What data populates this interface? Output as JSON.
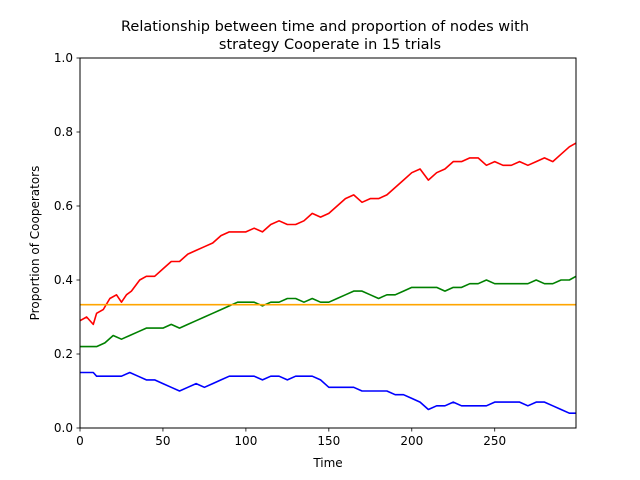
{
  "chart_data": {
    "type": "line",
    "title_lines": [
      "Relationship between time and proportion of nodes with",
      "strategy Cooperate in 15 trials"
    ],
    "xlabel": "Time",
    "ylabel": "Proportion of Cooperators",
    "xlim": [
      0,
      299
    ],
    "ylim": [
      0.0,
      1.0
    ],
    "xticks": [
      0,
      50,
      100,
      150,
      200,
      250
    ],
    "yticks": [
      0.0,
      0.2,
      0.4,
      0.6,
      0.8,
      1.0
    ],
    "ytick_labels": [
      "0.0",
      "0.2",
      "0.4",
      "0.6",
      "0.8",
      "1.0"
    ],
    "grid": false,
    "series": [
      {
        "color": "#ff0000",
        "x": [
          0,
          4,
          8,
          10,
          14,
          18,
          22,
          25,
          28,
          31,
          36,
          40,
          45,
          50,
          55,
          60,
          65,
          70,
          75,
          80,
          85,
          90,
          95,
          100,
          105,
          110,
          115,
          120,
          125,
          130,
          135,
          140,
          145,
          150,
          155,
          160,
          165,
          170,
          175,
          180,
          185,
          190,
          195,
          200,
          205,
          210,
          215,
          220,
          225,
          230,
          235,
          240,
          245,
          250,
          255,
          260,
          265,
          270,
          275,
          280,
          285,
          290,
          295,
          299
        ],
        "values": [
          0.29,
          0.3,
          0.28,
          0.31,
          0.32,
          0.35,
          0.36,
          0.34,
          0.36,
          0.37,
          0.4,
          0.41,
          0.41,
          0.43,
          0.45,
          0.45,
          0.47,
          0.48,
          0.49,
          0.5,
          0.52,
          0.53,
          0.53,
          0.53,
          0.54,
          0.53,
          0.55,
          0.56,
          0.55,
          0.55,
          0.56,
          0.58,
          0.57,
          0.58,
          0.6,
          0.62,
          0.63,
          0.61,
          0.62,
          0.62,
          0.63,
          0.65,
          0.67,
          0.69,
          0.7,
          0.67,
          0.69,
          0.7,
          0.72,
          0.72,
          0.73,
          0.73,
          0.71,
          0.72,
          0.71,
          0.71,
          0.72,
          0.71,
          0.72,
          0.73,
          0.72,
          0.74,
          0.76,
          0.77
        ]
      },
      {
        "color": "#008000",
        "x": [
          0,
          5,
          10,
          15,
          20,
          25,
          30,
          35,
          40,
          45,
          50,
          55,
          60,
          65,
          70,
          75,
          80,
          85,
          90,
          95,
          100,
          105,
          110,
          115,
          120,
          125,
          130,
          135,
          140,
          145,
          150,
          155,
          160,
          165,
          170,
          175,
          180,
          185,
          190,
          195,
          200,
          205,
          210,
          215,
          220,
          225,
          230,
          235,
          240,
          245,
          250,
          255,
          260,
          265,
          270,
          275,
          280,
          285,
          290,
          295,
          299
        ],
        "values": [
          0.22,
          0.22,
          0.22,
          0.23,
          0.25,
          0.24,
          0.25,
          0.26,
          0.27,
          0.27,
          0.27,
          0.28,
          0.27,
          0.28,
          0.29,
          0.3,
          0.31,
          0.32,
          0.33,
          0.34,
          0.34,
          0.34,
          0.33,
          0.34,
          0.34,
          0.35,
          0.35,
          0.34,
          0.35,
          0.34,
          0.34,
          0.35,
          0.36,
          0.37,
          0.37,
          0.36,
          0.35,
          0.36,
          0.36,
          0.37,
          0.38,
          0.38,
          0.38,
          0.38,
          0.37,
          0.38,
          0.38,
          0.39,
          0.39,
          0.4,
          0.39,
          0.39,
          0.39,
          0.39,
          0.39,
          0.4,
          0.39,
          0.39,
          0.4,
          0.4,
          0.41
        ]
      },
      {
        "color": "#0000ff",
        "x": [
          0,
          5,
          8,
          10,
          15,
          20,
          25,
          30,
          35,
          40,
          45,
          50,
          55,
          60,
          65,
          70,
          75,
          80,
          85,
          90,
          95,
          100,
          105,
          110,
          115,
          120,
          125,
          130,
          135,
          140,
          145,
          150,
          155,
          160,
          165,
          170,
          175,
          180,
          185,
          190,
          195,
          200,
          205,
          210,
          215,
          220,
          225,
          230,
          235,
          240,
          245,
          250,
          255,
          260,
          265,
          270,
          275,
          280,
          285,
          290,
          295,
          299
        ],
        "values": [
          0.15,
          0.15,
          0.15,
          0.14,
          0.14,
          0.14,
          0.14,
          0.15,
          0.14,
          0.13,
          0.13,
          0.12,
          0.11,
          0.1,
          0.11,
          0.12,
          0.11,
          0.12,
          0.13,
          0.14,
          0.14,
          0.14,
          0.14,
          0.13,
          0.14,
          0.14,
          0.13,
          0.14,
          0.14,
          0.14,
          0.13,
          0.11,
          0.11,
          0.11,
          0.11,
          0.1,
          0.1,
          0.1,
          0.1,
          0.09,
          0.09,
          0.08,
          0.07,
          0.05,
          0.06,
          0.06,
          0.07,
          0.06,
          0.06,
          0.06,
          0.06,
          0.07,
          0.07,
          0.07,
          0.07,
          0.06,
          0.07,
          0.07,
          0.06,
          0.05,
          0.04,
          0.04
        ]
      },
      {
        "color": "#ffa500",
        "x": [
          0,
          299
        ],
        "values": [
          0.3333,
          0.3333
        ]
      }
    ]
  }
}
